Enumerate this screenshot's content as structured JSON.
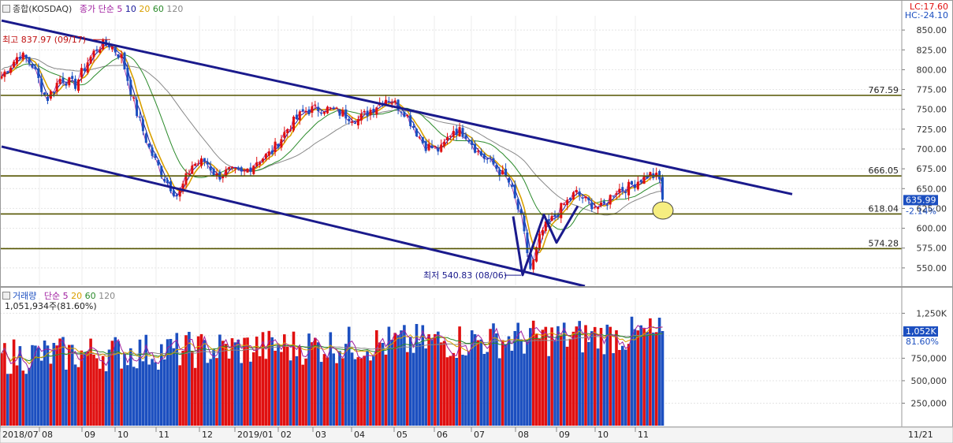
{
  "price_panel": {
    "legend": {
      "title": "종합(KOSDAQ)",
      "ma_label": "종가 단순",
      "periods": [
        "5",
        "10",
        "20",
        "60",
        "120"
      ],
      "period_colors": [
        "#a020a0",
        "#1a1a9a",
        "#d9a000",
        "#2a8a2a",
        "#888888"
      ]
    },
    "lc_label": "LC:17.60",
    "hc_label": "HC:-24.10",
    "current_price_label": "635.99",
    "current_change_label": "-2.14%",
    "high_annotation": "최고 837.97 (09/17)",
    "low_annotation": "최저 540.83 (08/06)",
    "support_labels": [
      "767.59",
      "666.05",
      "618.04",
      "574.28"
    ]
  },
  "volume_panel": {
    "legend": {
      "title": "거래량",
      "ma_label": "단순",
      "periods": [
        "5",
        "20",
        "60",
        "120"
      ],
      "period_colors": [
        "#a020a0",
        "#d9a000",
        "#2a8a2a",
        "#888888"
      ]
    },
    "current_volume_text": "1,051,934주(81.60%)",
    "current_volume_label": "1,052K",
    "current_pct_label": "81.60%"
  },
  "x_axis": {
    "labels": [
      "2018/07",
      "08",
      "09",
      "10",
      "11",
      "12",
      "2019/01",
      "02",
      "03",
      "04",
      "05",
      "06",
      "07",
      "08",
      "09",
      "10",
      "11"
    ],
    "right_label": "11/21"
  },
  "colors": {
    "up": "#e01010",
    "down": "#1c4fc0",
    "trendline": "#1a1a8c",
    "support_line": "#555500",
    "ma5": "#a020a0",
    "ma10": "#1a1a9a",
    "ma20": "#d9a000",
    "ma60": "#2a8a2a",
    "ma120": "#888888",
    "highlight_circle": "#f6ee80"
  },
  "chart_data": [
    {
      "type": "candlestick",
      "title": "종합(KOSDAQ)",
      "y_ticks": [
        550,
        575,
        600,
        625,
        650,
        675,
        700,
        725,
        750,
        775,
        800,
        825,
        850
      ],
      "y_tick_labels": [
        "550.00",
        "575.00",
        "600.00",
        "625.00",
        "650.00",
        "675.00",
        "700.00",
        "725.00",
        "750.00",
        "775.00",
        "800.00",
        "825.00",
        "850.00"
      ],
      "ylim": [
        528,
        868
      ],
      "horizontal_levels": [
        767.59,
        666.05,
        618.04,
        574.28
      ],
      "high": {
        "value": 837.97,
        "date": "09/17"
      },
      "low": {
        "value": 540.83,
        "date": "08/06"
      },
      "last_close": 635.99,
      "last_change_pct": -2.14,
      "trendlines": [
        {
          "from": [
            "2018/07",
            862
          ],
          "to": [
            "2019/12",
            643
          ]
        },
        {
          "from": [
            "2018/07",
            703
          ],
          "to": [
            "2019/10",
            527
          ]
        }
      ],
      "pattern_w": [
        [
          "2019/07",
          615
        ],
        [
          "2019/08",
          541
        ],
        [
          "2019/08",
          617
        ],
        [
          "2019/08",
          582
        ],
        [
          "2019/09",
          628
        ]
      ],
      "close_path": [
        [
          "2018/07",
          792
        ],
        [
          "2018/07",
          820
        ],
        [
          "2018/07",
          805
        ],
        [
          "2018/08",
          762
        ],
        [
          "2018/08",
          790
        ],
        [
          "2018/08",
          780
        ],
        [
          "2018/09",
          810
        ],
        [
          "2018/09",
          830
        ],
        [
          "2018/09",
          832
        ],
        [
          "2018/10",
          815
        ],
        [
          "2018/10",
          750
        ],
        [
          "2018/10",
          700
        ],
        [
          "2018/11",
          665
        ],
        [
          "2018/11",
          640
        ],
        [
          "2018/11",
          680
        ],
        [
          "2018/12",
          685
        ],
        [
          "2018/12",
          665
        ],
        [
          "2018/12",
          672
        ],
        [
          "2019/01",
          668
        ],
        [
          "2019/01",
          685
        ],
        [
          "2019/01",
          695
        ],
        [
          "2019/02",
          725
        ],
        [
          "2019/02",
          748
        ],
        [
          "2019/03",
          752
        ],
        [
          "2019/03",
          745
        ],
        [
          "2019/04",
          737
        ],
        [
          "2019/04",
          752
        ],
        [
          "2019/04",
          765
        ],
        [
          "2019/05",
          748
        ],
        [
          "2019/05",
          705
        ],
        [
          "2019/06",
          698
        ],
        [
          "2019/06",
          725
        ],
        [
          "2019/06",
          720
        ],
        [
          "2019/07",
          695
        ],
        [
          "2019/07",
          680
        ],
        [
          "2019/07",
          660
        ],
        [
          "2019/08",
          615
        ],
        [
          "2019/08",
          545
        ],
        [
          "2019/08",
          595
        ],
        [
          "2019/08",
          610
        ],
        [
          "2019/09",
          628
        ],
        [
          "2019/09",
          645
        ],
        [
          "2019/09",
          632
        ],
        [
          "2019/10",
          625
        ],
        [
          "2019/10",
          648
        ],
        [
          "2019/10",
          652
        ],
        [
          "2019/11",
          662
        ],
        [
          "2019/11",
          668
        ],
        [
          "2019/11",
          663
        ],
        [
          "2019/11",
          636
        ]
      ]
    },
    {
      "type": "bar",
      "title": "거래량",
      "y_ticks": [
        250000,
        500000,
        750000,
        1000000,
        1250000
      ],
      "y_tick_labels": [
        "250,000",
        "500,000",
        "750,000",
        "",
        "1,250K"
      ],
      "ylim": [
        0,
        1420000
      ],
      "last_volume": 1051934,
      "last_volume_pct": 81.6
    }
  ]
}
